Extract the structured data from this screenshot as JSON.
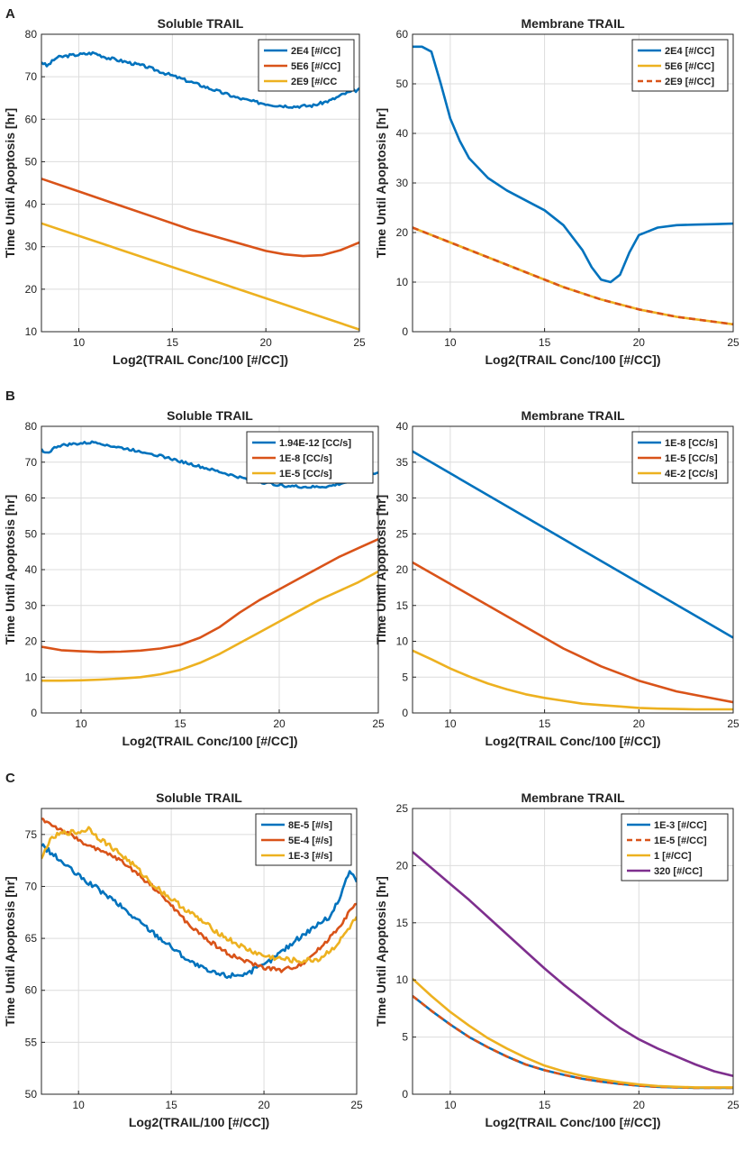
{
  "figure": {
    "panel_labels": [
      "A",
      "B",
      "C"
    ]
  },
  "chart_data": [
    {
      "panel": "A",
      "type": "line",
      "title": "Soluble TRAIL",
      "xlabel": "Log2(TRAIL Conc/100 [#/CC])",
      "ylabel": "Time Until Apoptosis [hr]",
      "xlim": [
        8,
        25
      ],
      "ylim": [
        10,
        80
      ],
      "xticks": [
        10,
        15,
        20,
        25
      ],
      "yticks": [
        10,
        20,
        30,
        40,
        50,
        60,
        70,
        80
      ],
      "grid": true,
      "legend": "top-right",
      "series": [
        {
          "name": "2E4 [#/CC]",
          "color": "#0072BD",
          "style": "solid",
          "noise": 0.35,
          "x": [
            8,
            8.3,
            8.8,
            9.5,
            10.2,
            10.8,
            11.5,
            12.5,
            13.5,
            14.5,
            15.5,
            16.5,
            17.5,
            18.5,
            19.5,
            20.5,
            21.5,
            22.5,
            23.5,
            24.2,
            25
          ],
          "y": [
            73.5,
            72.5,
            74.5,
            75,
            75.3,
            75.6,
            74.5,
            73.5,
            72.5,
            71,
            69.5,
            68,
            66.5,
            65,
            64,
            63.3,
            63,
            63.2,
            64.5,
            66,
            67
          ]
        },
        {
          "name": "5E6 [#/CC]",
          "color": "#D95319",
          "style": "solid",
          "x": [
            8,
            10,
            12,
            14,
            16,
            18,
            20,
            21,
            22,
            23,
            24,
            25
          ],
          "y": [
            46,
            43,
            40,
            37,
            34,
            31.5,
            29,
            28.2,
            27.8,
            28,
            29.2,
            31
          ]
        },
        {
          "name": "2E9 [#/CC",
          "color": "#EDB120",
          "style": "solid",
          "x": [
            8,
            25
          ],
          "y": [
            35.5,
            10.5
          ]
        }
      ]
    },
    {
      "panel": "A",
      "type": "line",
      "title": "Membrane TRAIL",
      "xlabel": "Log2(TRAIL Conc/100 [#/CC])",
      "ylabel": "Time Until Apoptosis [hr]",
      "xlim": [
        8,
        25
      ],
      "ylim": [
        0,
        60
      ],
      "xticks": [
        10,
        15,
        20,
        25
      ],
      "yticks": [
        0,
        10,
        20,
        30,
        40,
        50,
        60
      ],
      "grid": true,
      "legend": "top-right",
      "series": [
        {
          "name": "2E4 [#/CC]",
          "color": "#0072BD",
          "style": "solid",
          "x": [
            8,
            8.5,
            9,
            9.5,
            10,
            10.5,
            11,
            12,
            13,
            14,
            15,
            16,
            17,
            17.5,
            18,
            18.5,
            19,
            19.5,
            20,
            21,
            22,
            23,
            24,
            25
          ],
          "y": [
            57.5,
            57.5,
            56.5,
            50,
            43,
            38.5,
            35,
            31,
            28.5,
            26.5,
            24.5,
            21.5,
            16.5,
            13,
            10.5,
            10,
            11.5,
            16,
            19.5,
            21,
            21.5,
            21.6,
            21.7,
            21.8
          ]
        },
        {
          "name": "5E6 [#/CC]",
          "color": "#EDB120",
          "style": "solid",
          "x": [
            8,
            10,
            12,
            14,
            16,
            18,
            20,
            22,
            24,
            25
          ],
          "y": [
            21,
            18,
            15,
            12,
            9,
            6.5,
            4.5,
            3,
            2,
            1.5
          ]
        },
        {
          "name": "2E9 [#/CC]",
          "color": "#D95319",
          "style": "dashed",
          "x": [
            8,
            10,
            12,
            14,
            16,
            18,
            20,
            22,
            24,
            25
          ],
          "y": [
            21,
            18,
            15,
            12,
            9,
            6.5,
            4.5,
            3,
            2,
            1.5
          ]
        }
      ]
    },
    {
      "panel": "B",
      "type": "line",
      "title": "Soluble TRAIL",
      "xlabel": "Log2(TRAIL Conc/100 [#/CC])",
      "ylabel": "Time Until Apoptosis [hr]",
      "xlim": [
        8,
        25
      ],
      "ylim": [
        0,
        80
      ],
      "xticks": [
        10,
        15,
        20,
        25
      ],
      "yticks": [
        0,
        10,
        20,
        30,
        40,
        50,
        60,
        70,
        80
      ],
      "grid": true,
      "legend": "top-right",
      "series": [
        {
          "name": "1.94E-12 [CC/s]",
          "color": "#0072BD",
          "style": "solid",
          "noise": 0.35,
          "x": [
            8,
            8.3,
            8.8,
            9.5,
            10.2,
            10.8,
            11.5,
            12.5,
            13.5,
            14.5,
            15.5,
            16.5,
            17.5,
            18.5,
            19.5,
            20.5,
            21.5,
            22.5,
            23.5,
            24.2,
            25
          ],
          "y": [
            73.5,
            72.5,
            74.5,
            75,
            75.3,
            75.6,
            74.5,
            73.5,
            72.5,
            71,
            69.5,
            68,
            66.5,
            65,
            64,
            63.3,
            63,
            63.2,
            64.5,
            66,
            67
          ]
        },
        {
          "name": "1E-8 [CC/s]",
          "color": "#D95319",
          "style": "solid",
          "x": [
            8,
            9,
            10,
            11,
            12,
            13,
            14,
            15,
            16,
            17,
            18,
            19,
            20,
            21,
            22,
            23,
            24,
            25
          ],
          "y": [
            18.5,
            17.5,
            17.2,
            17,
            17.1,
            17.4,
            18,
            19,
            21,
            24,
            28,
            31.5,
            34.5,
            37.5,
            40.5,
            43.5,
            46,
            48.5
          ]
        },
        {
          "name": "1E-5 [CC/s]",
          "color": "#EDB120",
          "style": "solid",
          "x": [
            8,
            9,
            10,
            11,
            12,
            13,
            14,
            15,
            16,
            17,
            18,
            19,
            20,
            21,
            22,
            23,
            24,
            25
          ],
          "y": [
            9,
            9,
            9.1,
            9.3,
            9.6,
            10,
            10.8,
            12,
            14,
            16.5,
            19.5,
            22.5,
            25.5,
            28.5,
            31.5,
            34,
            36.5,
            39.5
          ]
        }
      ]
    },
    {
      "panel": "B",
      "type": "line",
      "title": "Membrane TRAIL",
      "xlabel": "Log2(TRAIL Conc/100 [#/CC])",
      "ylabel": "Time Until Apoptosis [hr]",
      "xlim": [
        8,
        25
      ],
      "ylim": [
        0,
        40
      ],
      "xticks": [
        10,
        15,
        20,
        25
      ],
      "yticks": [
        0,
        5,
        10,
        15,
        20,
        25,
        30,
        35,
        40
      ],
      "grid": true,
      "legend": "top-right",
      "series": [
        {
          "name": "1E-8 [CC/s]",
          "color": "#0072BD",
          "style": "solid",
          "x": [
            8,
            25
          ],
          "y": [
            36.5,
            10.5
          ]
        },
        {
          "name": "1E-5 [CC/s]",
          "color": "#D95319",
          "style": "solid",
          "x": [
            8,
            10,
            12,
            14,
            16,
            18,
            20,
            22,
            24,
            25
          ],
          "y": [
            21,
            18,
            15,
            12,
            9,
            6.5,
            4.5,
            3,
            2,
            1.5
          ]
        },
        {
          "name": "4E-2 [CC/s]",
          "color": "#EDB120",
          "style": "solid",
          "x": [
            8,
            9,
            10,
            11,
            12,
            13,
            14,
            15,
            16,
            17,
            18,
            19,
            20,
            21,
            22,
            23,
            24,
            25
          ],
          "y": [
            8.7,
            7.5,
            6.2,
            5.1,
            4.1,
            3.3,
            2.6,
            2.1,
            1.7,
            1.3,
            1.1,
            0.9,
            0.7,
            0.6,
            0.55,
            0.5,
            0.5,
            0.5
          ]
        }
      ]
    },
    {
      "panel": "C",
      "type": "line",
      "title": "Soluble TRAIL",
      "xlabel": "Log2(TRAIL/100 [#/CC])",
      "ylabel": "Time Until Apoptosis [hr]",
      "xlim": [
        8,
        25
      ],
      "ylim": [
        50,
        77.5
      ],
      "xticks": [
        10,
        15,
        20,
        25
      ],
      "yticks": [
        50,
        55,
        60,
        65,
        70,
        75
      ],
      "grid": true,
      "legend": "top-right",
      "series": [
        {
          "name": "8E-5 [#/s]",
          "color": "#0072BD",
          "style": "solid",
          "noise": 0.25,
          "x": [
            8,
            9,
            10,
            11,
            12,
            13,
            14,
            15,
            16,
            17,
            18,
            19,
            20,
            21,
            22,
            23,
            23.5,
            24,
            24.3,
            24.6,
            25
          ],
          "y": [
            74,
            72.5,
            71,
            69.8,
            68.5,
            67,
            65.6,
            64.2,
            62.8,
            61.8,
            61.4,
            61.6,
            62.4,
            63.8,
            65.2,
            66.5,
            67,
            68.5,
            70,
            71.5,
            70.5
          ]
        },
        {
          "name": "5E-4 [#/s]",
          "color": "#D95319",
          "style": "solid",
          "noise": 0.2,
          "x": [
            8,
            9,
            10,
            11,
            12,
            13,
            14,
            15,
            16,
            17,
            18,
            19,
            20,
            21,
            22,
            23,
            24,
            25
          ],
          "y": [
            76.5,
            75.5,
            74.5,
            73.5,
            72.8,
            71.5,
            70,
            68.2,
            66.2,
            64.8,
            63.6,
            62.8,
            62.2,
            61.9,
            62.5,
            64,
            66,
            68.5
          ]
        },
        {
          "name": "1E-3 [#/s]",
          "color": "#EDB120",
          "style": "solid",
          "noise": 0.25,
          "x": [
            8,
            8.3,
            8.7,
            9.3,
            10,
            10.6,
            11,
            12,
            13,
            14,
            15,
            16,
            17,
            18,
            19,
            20,
            21,
            22,
            23,
            24,
            25
          ],
          "y": [
            72.5,
            74,
            74.8,
            75.2,
            75.2,
            75.6,
            74.8,
            73.5,
            72,
            70.2,
            68.8,
            67.5,
            66.2,
            65,
            64,
            63.3,
            63,
            62.8,
            63,
            64.5,
            67
          ]
        }
      ]
    },
    {
      "panel": "C",
      "type": "line",
      "title": "Membrane TRAIL",
      "xlabel": "Log2(TRAIL Conc/100 [#/CC])",
      "ylabel": "TIme Until Apoptosis [hr]",
      "xlim": [
        8,
        25
      ],
      "ylim": [
        0,
        25
      ],
      "xticks": [
        10,
        15,
        20,
        25
      ],
      "yticks": [
        0,
        5,
        10,
        15,
        20,
        25
      ],
      "grid": true,
      "legend": "top-right",
      "series": [
        {
          "name": "1E-3 [#/CC]",
          "color": "#0072BD",
          "style": "solid",
          "x": [
            8,
            9,
            10,
            11,
            12,
            13,
            14,
            15,
            16,
            17,
            18,
            19,
            20,
            21,
            22,
            23,
            24,
            25
          ],
          "y": [
            8.6,
            7.3,
            6.1,
            5.0,
            4.1,
            3.3,
            2.6,
            2.1,
            1.7,
            1.35,
            1.1,
            0.9,
            0.75,
            0.65,
            0.6,
            0.55,
            0.55,
            0.55
          ]
        },
        {
          "name": "1E-5 [#/CC]",
          "color": "#D95319",
          "style": "dashed",
          "x": [
            8,
            9,
            10,
            11,
            12,
            13,
            14,
            15,
            16,
            17,
            18,
            19,
            20,
            21,
            22,
            23,
            24,
            25
          ],
          "y": [
            8.6,
            7.3,
            6.1,
            5.0,
            4.1,
            3.3,
            2.6,
            2.1,
            1.7,
            1.35,
            1.1,
            0.9,
            0.75,
            0.65,
            0.6,
            0.55,
            0.55,
            0.55
          ]
        },
        {
          "name": "1 [#/CC]",
          "color": "#EDB120",
          "style": "solid",
          "x": [
            8,
            9,
            10,
            11,
            12,
            13,
            14,
            15,
            16,
            17,
            18,
            19,
            20,
            21,
            22,
            23,
            24,
            25
          ],
          "y": [
            10.1,
            8.6,
            7.2,
            6.0,
            4.9,
            4.0,
            3.2,
            2.5,
            2.0,
            1.6,
            1.3,
            1.05,
            0.85,
            0.72,
            0.65,
            0.6,
            0.6,
            0.6
          ]
        },
        {
          "name": "320 [#/CC]",
          "color": "#7E2F8E",
          "style": "solid",
          "x": [
            8,
            9,
            10,
            11,
            12,
            13,
            14,
            15,
            16,
            17,
            18,
            19,
            20,
            21,
            22,
            23,
            24,
            25
          ],
          "y": [
            21.2,
            19.8,
            18.4,
            17.0,
            15.5,
            14.0,
            12.5,
            11.0,
            9.6,
            8.3,
            7.0,
            5.8,
            4.8,
            4.0,
            3.3,
            2.6,
            2.0,
            1.6
          ]
        }
      ]
    }
  ]
}
